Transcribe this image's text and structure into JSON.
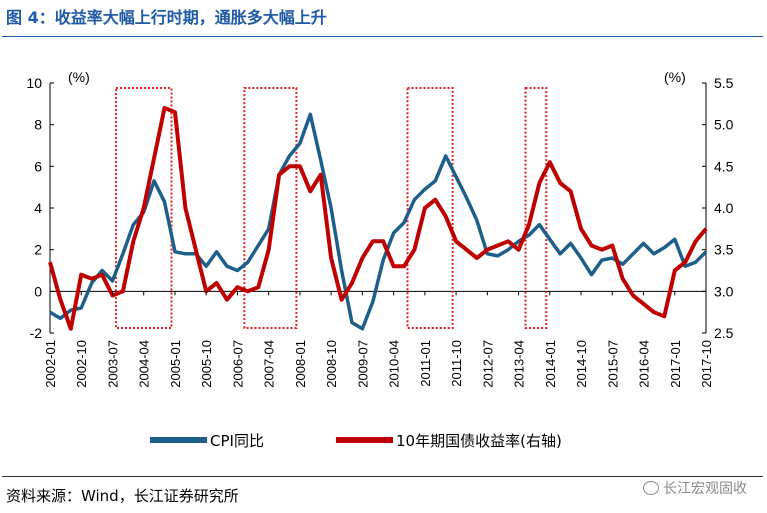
{
  "header": {
    "title": "图 4：收益率大幅上行时期，通胀多大幅上升"
  },
  "footer": {
    "source": "资料来源：Wind，长江证券研究所",
    "watermark": "长江宏观固收"
  },
  "chart_data": {
    "type": "line",
    "title": "",
    "left_unit": "(%)",
    "right_unit": "(%)",
    "x_labels": [
      "2002-01",
      "2002-10",
      "2003-07",
      "2004-04",
      "2005-01",
      "2005-10",
      "2006-07",
      "2007-04",
      "2008-01",
      "2008-10",
      "2009-07",
      "2010-04",
      "2011-01",
      "2011-10",
      "2012-07",
      "2013-04",
      "2014-01",
      "2014-10",
      "2015-07",
      "2016-04",
      "2017-01",
      "2017-10"
    ],
    "left_axis": {
      "min": -2,
      "max": 10,
      "ticks": [
        -2,
        0,
        2,
        4,
        6,
        8,
        10
      ]
    },
    "right_axis": {
      "min": 2.5,
      "max": 5.5,
      "ticks": [
        "2.5",
        "3.0",
        "3.5",
        "4.0",
        "4.5",
        "5.0",
        "5.5"
      ]
    },
    "grid": false,
    "legend_position": "bottom",
    "series": [
      {
        "name": "CPI同比",
        "axis": "left",
        "color": "#1c5f8b",
        "x": [
          "2002-01",
          "2002-04",
          "2002-07",
          "2002-10",
          "2003-01",
          "2003-04",
          "2003-07",
          "2003-10",
          "2004-01",
          "2004-04",
          "2004-07",
          "2004-10",
          "2005-01",
          "2005-04",
          "2005-07",
          "2005-10",
          "2006-01",
          "2006-04",
          "2006-07",
          "2006-10",
          "2007-01",
          "2007-04",
          "2007-07",
          "2007-10",
          "2008-01",
          "2008-04",
          "2008-07",
          "2008-10",
          "2009-01",
          "2009-04",
          "2009-07",
          "2009-10",
          "2010-01",
          "2010-04",
          "2010-07",
          "2010-10",
          "2011-01",
          "2011-04",
          "2011-07",
          "2011-10",
          "2012-01",
          "2012-04",
          "2012-07",
          "2012-10",
          "2013-01",
          "2013-04",
          "2013-07",
          "2013-10",
          "2014-01",
          "2014-04",
          "2014-07",
          "2014-10",
          "2015-01",
          "2015-04",
          "2015-07",
          "2015-10",
          "2016-01",
          "2016-04",
          "2016-07",
          "2016-10",
          "2017-01",
          "2017-04",
          "2017-07",
          "2017-10"
        ],
        "values": [
          -1.0,
          -1.3,
          -0.9,
          -0.8,
          0.4,
          1.0,
          0.5,
          1.8,
          3.2,
          3.8,
          5.3,
          4.3,
          1.9,
          1.8,
          1.8,
          1.2,
          1.9,
          1.2,
          1.0,
          1.4,
          2.2,
          3.0,
          5.6,
          6.5,
          7.1,
          8.5,
          6.3,
          4.0,
          1.0,
          -1.5,
          -1.8,
          -0.5,
          1.5,
          2.8,
          3.3,
          4.4,
          4.9,
          5.3,
          6.5,
          5.5,
          4.5,
          3.4,
          1.8,
          1.7,
          2.0,
          2.4,
          2.7,
          3.2,
          2.5,
          1.8,
          2.3,
          1.6,
          0.8,
          1.5,
          1.6,
          1.3,
          1.8,
          2.3,
          1.8,
          2.1,
          2.5,
          1.2,
          1.4,
          1.9
        ]
      },
      {
        "name": "10年期国债收益率(右轴)",
        "axis": "right",
        "color": "#c00000",
        "x": [
          "2002-01",
          "2002-04",
          "2002-07",
          "2002-10",
          "2003-01",
          "2003-04",
          "2003-07",
          "2003-10",
          "2004-01",
          "2004-04",
          "2004-07",
          "2004-10",
          "2005-01",
          "2005-04",
          "2005-07",
          "2005-10",
          "2006-01",
          "2006-04",
          "2006-07",
          "2006-10",
          "2007-01",
          "2007-04",
          "2007-07",
          "2007-10",
          "2008-01",
          "2008-04",
          "2008-07",
          "2008-10",
          "2009-01",
          "2009-04",
          "2009-07",
          "2009-10",
          "2010-01",
          "2010-04",
          "2010-07",
          "2010-10",
          "2011-01",
          "2011-04",
          "2011-07",
          "2011-10",
          "2012-01",
          "2012-04",
          "2012-07",
          "2012-10",
          "2013-01",
          "2013-04",
          "2013-07",
          "2013-10",
          "2014-01",
          "2014-04",
          "2014-07",
          "2014-10",
          "2015-01",
          "2015-04",
          "2015-07",
          "2015-10",
          "2016-01",
          "2016-04",
          "2016-07",
          "2016-10",
          "2017-01",
          "2017-04",
          "2017-07",
          "2017-10"
        ],
        "values": [
          3.35,
          2.9,
          2.55,
          3.2,
          3.15,
          3.2,
          2.95,
          3.0,
          3.6,
          4.0,
          4.6,
          5.2,
          5.15,
          4.0,
          3.5,
          3.0,
          3.1,
          2.9,
          3.05,
          3.0,
          3.05,
          3.5,
          4.4,
          4.5,
          4.5,
          4.2,
          4.4,
          3.4,
          2.9,
          3.1,
          3.4,
          3.6,
          3.6,
          3.3,
          3.3,
          3.5,
          4.0,
          4.1,
          3.9,
          3.6,
          3.5,
          3.4,
          3.5,
          3.55,
          3.6,
          3.5,
          3.8,
          4.3,
          4.55,
          4.3,
          4.2,
          3.75,
          3.55,
          3.5,
          3.55,
          3.15,
          2.95,
          2.85,
          2.75,
          2.7,
          3.25,
          3.35,
          3.6,
          3.75
        ]
      }
    ],
    "highlight_periods": [
      {
        "start": "2003-08",
        "end": "2004-12"
      },
      {
        "start": "2006-09",
        "end": "2007-12"
      },
      {
        "start": "2010-08",
        "end": "2011-09"
      },
      {
        "start": "2013-06",
        "end": "2013-12"
      }
    ]
  }
}
